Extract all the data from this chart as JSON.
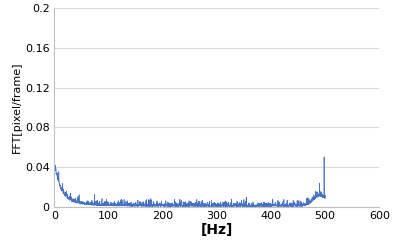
{
  "title": "",
  "xlabel": "[Hz]",
  "ylabel": "FFT[pixel/frame]",
  "xlim": [
    0,
    600
  ],
  "ylim": [
    0,
    0.2
  ],
  "xticks": [
    0,
    100,
    200,
    300,
    400,
    500,
    600
  ],
  "yticks": [
    0,
    0.04,
    0.08,
    0.12,
    0.16,
    0.2
  ],
  "ytick_labels": [
    "0",
    "0.04",
    "0.08",
    "0.12",
    "0.16",
    "0.2"
  ],
  "line_color": "#4472c4",
  "background_color": "#ffffff",
  "plot_bg_color": "#ffffff",
  "grid_color": "#d9d9d9",
  "xlabel_fontsize": 10,
  "ylabel_fontsize": 8,
  "tick_fontsize": 8
}
